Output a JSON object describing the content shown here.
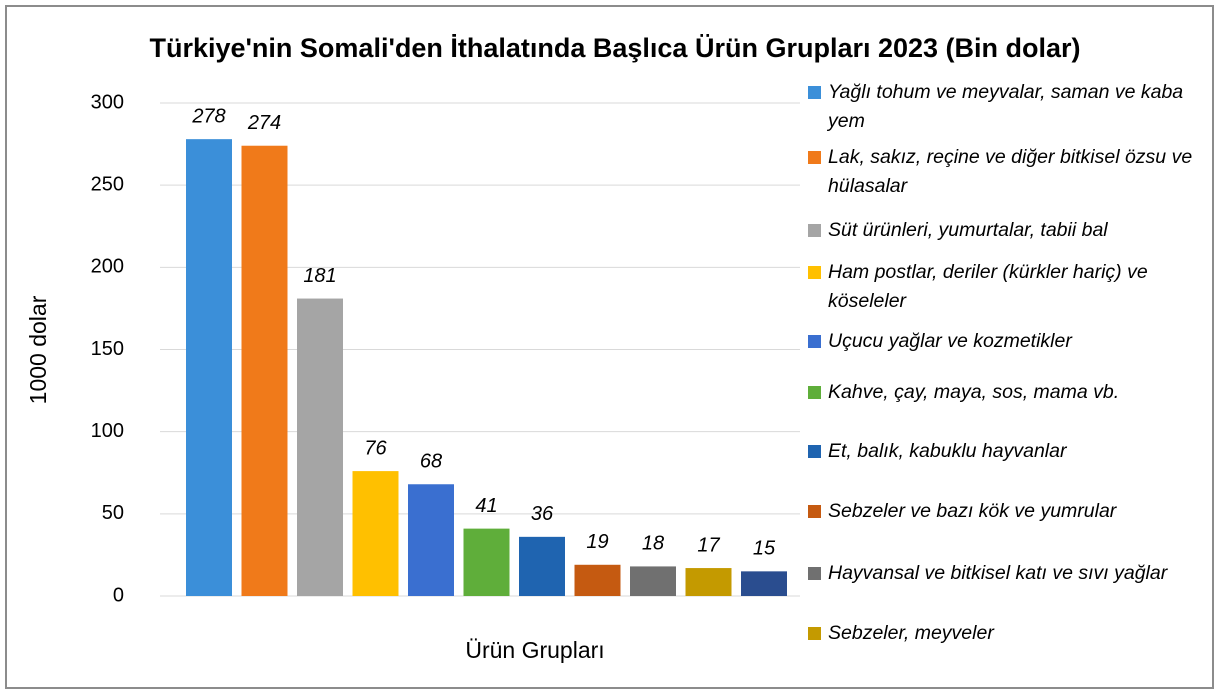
{
  "chart_data": {
    "type": "bar",
    "title": "Türkiye'nin Somali'den İthalatında Başlıca Ürün Grupları 2023 (Bin dolar)",
    "ylabel": "1000 dolar",
    "xlabel": "Ürün Grupları",
    "categories": [
      "Yağlı tohum ve meyvalar, saman ve kaba yem",
      "Lak, sakız, reçine ve diğer bitkisel özsu ve hülasalar",
      "Süt ürünleri, yumurtalar, tabii bal",
      "Ham postlar, deriler (kürkler hariç) ve köseleler",
      "Uçucu yağlar ve kozmetikler",
      "Kahve, çay, maya, sos, mama vb.",
      "Et, balık, kabuklu hayvanlar",
      "Sebzeler ve bazı kök ve yumrular",
      "Hayvansal ve bitkisel katı ve sıvı yağlar",
      "Sebzeler, meyveler",
      null
    ],
    "values": [
      278,
      274,
      181,
      76,
      68,
      41,
      36,
      19,
      18,
      17,
      15
    ],
    "colors": [
      "#3b8fd9",
      "#f07a1a",
      "#a5a5a5",
      "#ffc000",
      "#3a6fd0",
      "#5fae3a",
      "#1f64b0",
      "#c55a11",
      "#707070",
      "#c49a00",
      "#2a4d8f"
    ],
    "ylim": [
      0,
      300
    ],
    "yticks": [
      0,
      50,
      100,
      150,
      200,
      250,
      300
    ],
    "grid": true
  }
}
